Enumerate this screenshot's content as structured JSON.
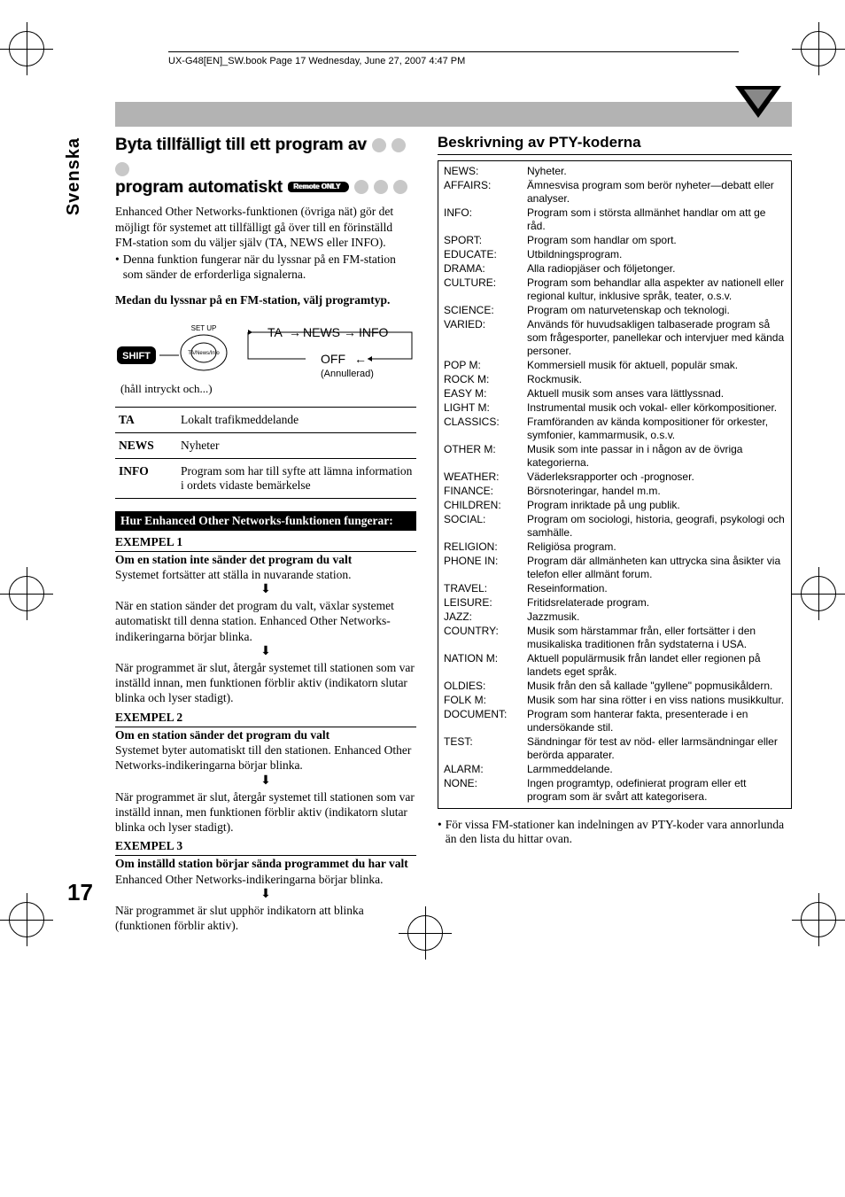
{
  "header": {
    "running_head": "UX-G48[EN]_SW.book  Page 17  Wednesday, June 27, 2007  4:47 PM"
  },
  "side_tab": "Svenska",
  "page_number": "17",
  "left": {
    "title_line1": "Byta tillfälligt till ett program av",
    "title_line2": "program automatiskt",
    "remote_badge": "Remote ONLY",
    "intro_p1": "Enhanced Other Networks-funktionen (övriga nät) gör det möjligt för systemet att tillfälligt gå över till en förinställd FM-station som du väljer själv (TA, NEWS eller INFO).",
    "intro_bullet": "Denna funktion fungerar när du lyssnar på en FM-station som sänder de erforderliga signalerna.",
    "subhead": "Medan du lyssnar på en FM-station, välj programtyp.",
    "diagram": {
      "setup_label": "SET UP",
      "shift_label": "SHIFT",
      "btn_label": "TA/News/Info",
      "flow": [
        "TA",
        "NEWS",
        "INFO",
        "OFF"
      ],
      "cancelled": "(Annullerad)",
      "hold_note": "(håll intryckt och...)"
    },
    "defs": [
      {
        "term": "TA",
        "def": "Lokalt trafikmeddelande"
      },
      {
        "term": "NEWS",
        "def": "Nyheter"
      },
      {
        "term": "INFO",
        "def": "Program som har till syfte att lämna information i ordets vidaste bemärkelse"
      }
    ],
    "how_title": "Hur Enhanced Other Networks-funktionen fungerar:",
    "examples": [
      {
        "head": "EXEMPEL 1",
        "bold": "Om en station inte sänder det program du valt",
        "p1": "Systemet fortsätter att ställa in nuvarande station.",
        "p2": "När en station sänder det program du valt, växlar systemet automatiskt till denna station. Enhanced Other Networks-indikeringarna börjar blinka.",
        "p3": "När programmet är slut, återgår systemet till stationen som var inställd innan, men funktionen förblir aktiv (indikatorn slutar blinka och lyser stadigt)."
      },
      {
        "head": "EXEMPEL 2",
        "bold": "Om en station sänder det program du valt",
        "p1": "Systemet byter automatiskt till den stationen. Enhanced Other Networks-indikeringarna börjar blinka.",
        "p2": "När programmet är slut, återgår systemet till stationen som var inställd innan, men funktionen förblir aktiv (indikatorn slutar blinka och lyser stadigt)."
      },
      {
        "head": "EXEMPEL 3",
        "bold": "Om inställd station börjar sända programmet du har valt",
        "p1": "Enhanced Other Networks-indikeringarna börjar blinka.",
        "p2": "När programmet är slut upphör indikatorn att blinka (funktionen förblir aktiv)."
      }
    ]
  },
  "right": {
    "title": "Beskrivning av PTY-koderna",
    "codes": [
      {
        "code": "NEWS:",
        "desc": "Nyheter."
      },
      {
        "code": "AFFAIRS:",
        "desc": "Ämnesvisa program som berör nyheter—debatt eller analyser."
      },
      {
        "code": "INFO:",
        "desc": "Program som i största allmänhet handlar om att ge råd."
      },
      {
        "code": "SPORT:",
        "desc": "Program som handlar om sport."
      },
      {
        "code": "EDUCATE:",
        "desc": "Utbildningsprogram."
      },
      {
        "code": "DRAMA:",
        "desc": "Alla radiopjäser och följetonger."
      },
      {
        "code": "CULTURE:",
        "desc": "Program som behandlar alla aspekter av nationell eller regional kultur, inklusive språk, teater, o.s.v."
      },
      {
        "code": "SCIENCE:",
        "desc": "Program om naturvetenskap och teknologi."
      },
      {
        "code": "VARIED:",
        "desc": "Används för huvudsakligen talbaserade program så som frågesporter, panellekar och intervjuer med kända personer."
      },
      {
        "code": "POP M:",
        "desc": "Kommersiell musik för aktuell, populär smak."
      },
      {
        "code": "ROCK M:",
        "desc": "Rockmusik."
      },
      {
        "code": "EASY M:",
        "desc": "Aktuell musik som anses vara lättlyssnad."
      },
      {
        "code": "LIGHT M:",
        "desc": "Instrumental musik och vokal- eller körkompositioner."
      },
      {
        "code": "CLASSICS:",
        "desc": "Framföranden av kända kompositioner för orkester, symfonier, kammarmusik, o.s.v."
      },
      {
        "code": "OTHER M:",
        "desc": "Musik som inte passar in i någon av de övriga kategorierna."
      },
      {
        "code": "WEATHER:",
        "desc": "Väderleksrapporter och -prognoser."
      },
      {
        "code": "FINANCE:",
        "desc": "Börsnoteringar, handel m.m."
      },
      {
        "code": "CHILDREN:",
        "desc": "Program inriktade på ung publik."
      },
      {
        "code": "SOCIAL:",
        "desc": "Program om sociologi, historia, geografi, psykologi och samhälle."
      },
      {
        "code": "RELIGION:",
        "desc": "Religiösa program."
      },
      {
        "code": "PHONE IN:",
        "desc": "Program där allmänheten kan uttrycka sina åsikter via telefon eller allmänt forum."
      },
      {
        "code": "TRAVEL:",
        "desc": "Reseinformation."
      },
      {
        "code": "LEISURE:",
        "desc": "Fritidsrelaterade program."
      },
      {
        "code": "JAZZ:",
        "desc": "Jazzmusik."
      },
      {
        "code": "COUNTRY:",
        "desc": "Musik som härstammar från, eller fortsätter i den musikaliska traditionen från sydstaterna i USA."
      },
      {
        "code": "NATION M:",
        "desc": "Aktuell populärmusik från landet eller regionen på landets eget språk."
      },
      {
        "code": "OLDIES:",
        "desc": "Musik från den så kallade \"gyllene\" popmusikåldern."
      },
      {
        "code": "FOLK M:",
        "desc": "Musik som har sina rötter i en viss nations musikkultur."
      },
      {
        "code": "DOCUMENT:",
        "desc": "Program som hanterar fakta, presenterade i en undersökande stil."
      },
      {
        "code": "TEST:",
        "desc": "Sändningar för test av nöd- eller larmsändningar eller berörda apparater."
      },
      {
        "code": "ALARM:",
        "desc": "Larmmeddelande."
      },
      {
        "code": "NONE:",
        "desc": "Ingen programtyp, odefinierat program eller ett program som är svårt att kategorisera."
      }
    ],
    "footnote": "För vissa FM-stationer kan indelningen av PTY-koder vara annorlunda än den lista du hittar ovan."
  }
}
